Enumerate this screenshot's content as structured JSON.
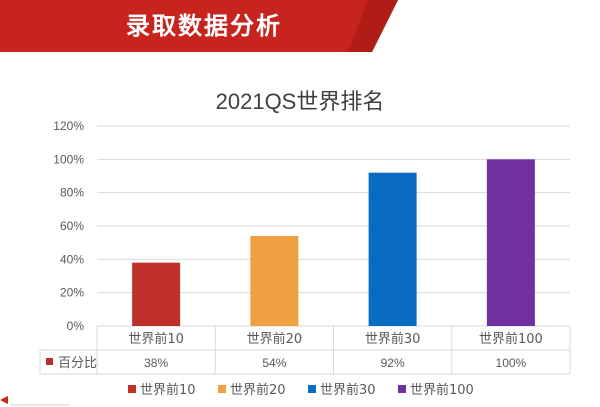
{
  "header": {
    "title": "录取数据分析"
  },
  "colors": {
    "banner_red": "#c8241e",
    "banner_dark": "#9a1410",
    "grid": "#d9d9d9",
    "axis_text": "#595959"
  },
  "chart_data": {
    "type": "bar",
    "title": "2021QS世界排名",
    "categories": [
      "世界前10",
      "世界前20",
      "世界前30",
      "世界前100"
    ],
    "series": [
      {
        "name": "百分比",
        "values": [
          38,
          54,
          92,
          100
        ]
      }
    ],
    "value_labels": [
      "38%",
      "54%",
      "92%",
      "100%"
    ],
    "bar_colors": [
      "#c0302b",
      "#f0a040",
      "#0a6cc0",
      "#7030a0"
    ],
    "ylim": [
      0,
      120
    ],
    "yticks": [
      "0%",
      "20%",
      "40%",
      "60%",
      "80%",
      "100%",
      "120%"
    ],
    "grid": true,
    "data_table": true,
    "legend": {
      "placement": "bottom",
      "entries": [
        "世界前10",
        "世界前20",
        "世界前30",
        "世界前100"
      ]
    },
    "xlabel": "",
    "ylabel": ""
  }
}
